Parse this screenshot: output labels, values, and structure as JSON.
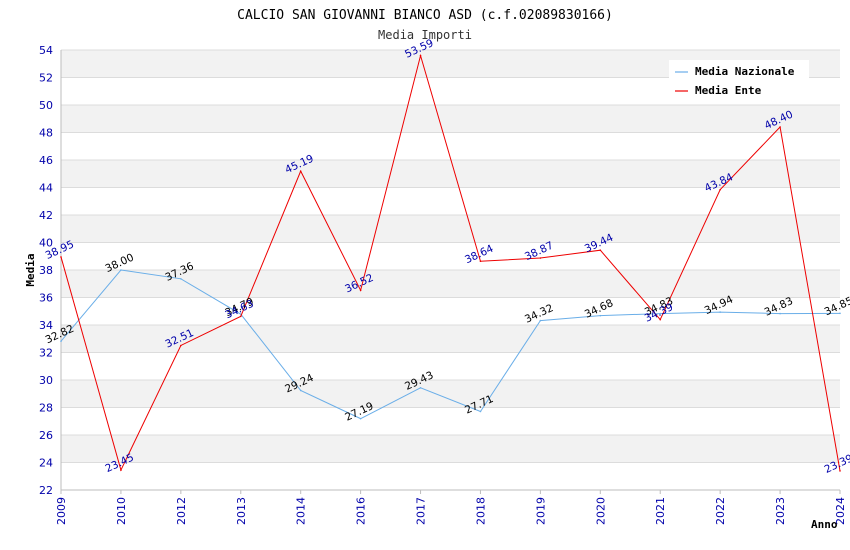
{
  "chart_data": {
    "type": "line",
    "title": "CALCIO SAN GIOVANNI BIANCO ASD (c.f.02089830166)",
    "subtitle": "Media Importi",
    "ylabel": "Media",
    "xlabel": "Anno",
    "ylim": [
      22,
      54
    ],
    "ytick_step": 2,
    "categories": [
      "2009",
      "2010",
      "2012",
      "2013",
      "2014",
      "2016",
      "2017",
      "2018",
      "2019",
      "2020",
      "2021",
      "2022",
      "2023",
      "2024"
    ],
    "series": [
      {
        "name": "Media Nazionale",
        "color": "#6aaee8",
        "label_color": "#000000",
        "values": [
          32.82,
          38.0,
          37.36,
          34.79,
          29.24,
          27.19,
          29.43,
          27.71,
          34.32,
          34.68,
          34.83,
          34.94,
          34.83,
          34.85
        ],
        "labels": [
          "32.82",
          "38.00",
          "37.36",
          "34.79",
          "29.24",
          "27.19",
          "29.43",
          "27.71",
          "34.32",
          "34.68",
          "34.83",
          "34.94",
          "34.83",
          "34.85"
        ]
      },
      {
        "name": "Media Ente",
        "color": "#ee0000",
        "label_color": "#0000aa",
        "values": [
          38.95,
          23.45,
          32.51,
          34.63,
          45.19,
          36.52,
          53.59,
          38.64,
          38.87,
          39.44,
          34.39,
          43.84,
          48.4,
          23.39
        ],
        "labels": [
          "38.95",
          "23.45",
          "32.51",
          "34.63",
          "45.19",
          "36.52",
          "53.59",
          "38.64",
          "38.87",
          "39.44",
          "34.39",
          "43.84",
          "48.40",
          "23.39"
        ]
      }
    ],
    "legend": "top-right",
    "grid": true,
    "band_colors": [
      "#f2f2f2",
      "#ffffff"
    ]
  }
}
